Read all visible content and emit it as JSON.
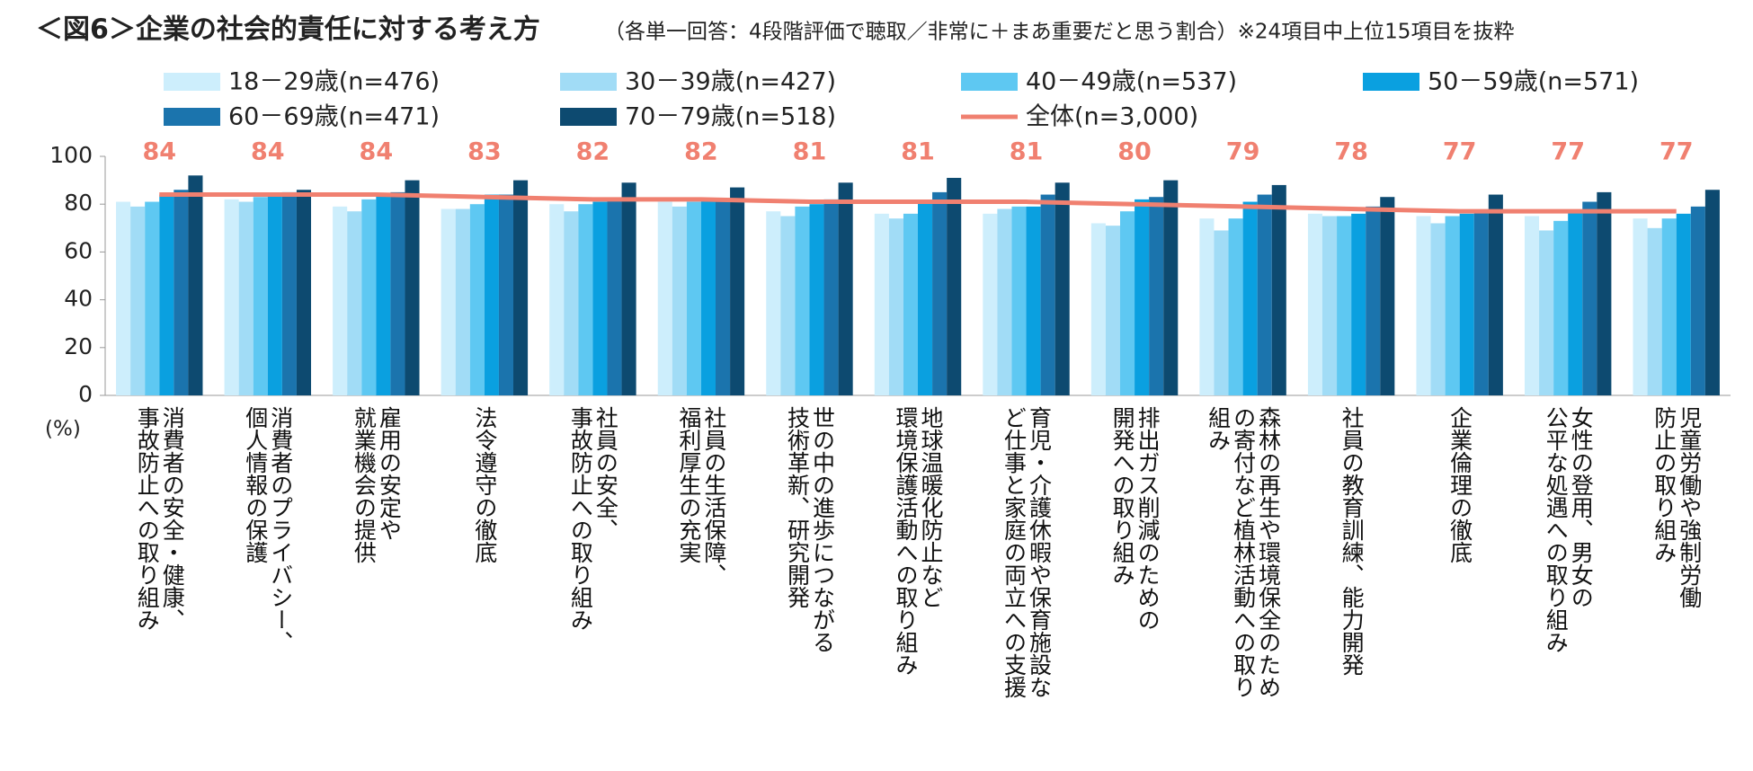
{
  "chart_data": {
    "type": "bar",
    "title": "＜図6＞企業の社会的責任に対する考え方",
    "subtitle": "（各単一回答：4段階評価で聴取／非常に＋まあ重要だと思う割合）※24項目中上位15項目を抜粋",
    "y_label": "(%)",
    "categories": [
      "消費者の安全・健康、\n事故防止への取り組み",
      "消費者のプライバシー、\n個人情報の保護",
      "雇用の安定や\n就業機会の提供",
      "法令遵守の徹底",
      "社員の安全、\n事故防止への取り組み",
      "社員の生活保障、\n福利厚生の充実",
      "世の中の進歩につながる\n技術革新、研究開発",
      "地球温暖化防止など\n環境保護活動への取り組み",
      "育児・介護休暇や保育施設な\nど仕事と家庭の両立への支援",
      "排出ガス削減のための\n開発への取り組み",
      "森林の再生や環境保全のため\nの寄付など植林活動への取り\n組み",
      "社員の教育訓練、能力開発",
      "企業倫理の徹底",
      "女性の登用、男女の\n公平な処遇への取り組み",
      "児童労働や強制労働\n防止の取り組み"
    ],
    "series": [
      {
        "name": "18－29歳(n=476)",
        "color": "#cdeefc",
        "values": [
          81,
          82,
          79,
          78,
          80,
          81,
          77,
          76,
          76,
          72,
          74,
          76,
          75,
          75,
          74
        ]
      },
      {
        "name": "30－39歳(n=427)",
        "color": "#a1dcf6",
        "values": [
          79,
          81,
          77,
          78,
          77,
          79,
          75,
          74,
          78,
          71,
          69,
          75,
          72,
          69,
          70
        ]
      },
      {
        "name": "40－49歳(n=537)",
        "color": "#5ec8f2",
        "values": [
          81,
          83,
          82,
          80,
          80,
          81,
          79,
          76,
          79,
          77,
          74,
          75,
          75,
          73,
          74
        ]
      },
      {
        "name": "50－59歳(n=571)",
        "color": "#0aa0e0",
        "values": [
          84,
          84,
          84,
          84,
          81,
          82,
          80,
          81,
          79,
          82,
          81,
          76,
          76,
          77,
          76
        ]
      },
      {
        "name": "60－69歳(n=471)",
        "color": "#1b74ad",
        "values": [
          86,
          85,
          85,
          84,
          82,
          82,
          82,
          85,
          84,
          83,
          84,
          79,
          77,
          81,
          79
        ]
      },
      {
        "name": "70－79歳(n=518)",
        "color": "#0d4a70",
        "values": [
          92,
          86,
          90,
          90,
          89,
          87,
          89,
          91,
          89,
          90,
          88,
          83,
          84,
          85,
          86
        ]
      },
      {
        "name": "全体(n=3,000)",
        "color": "#f08070",
        "type": "line",
        "values": [
          84,
          84,
          84,
          83,
          82,
          82,
          81,
          81,
          81,
          80,
          79,
          78,
          77,
          77,
          77
        ]
      }
    ],
    "ylim": [
      0,
      100
    ],
    "yticks": [
      0,
      20,
      40,
      60,
      80,
      100
    ],
    "grid": false
  }
}
